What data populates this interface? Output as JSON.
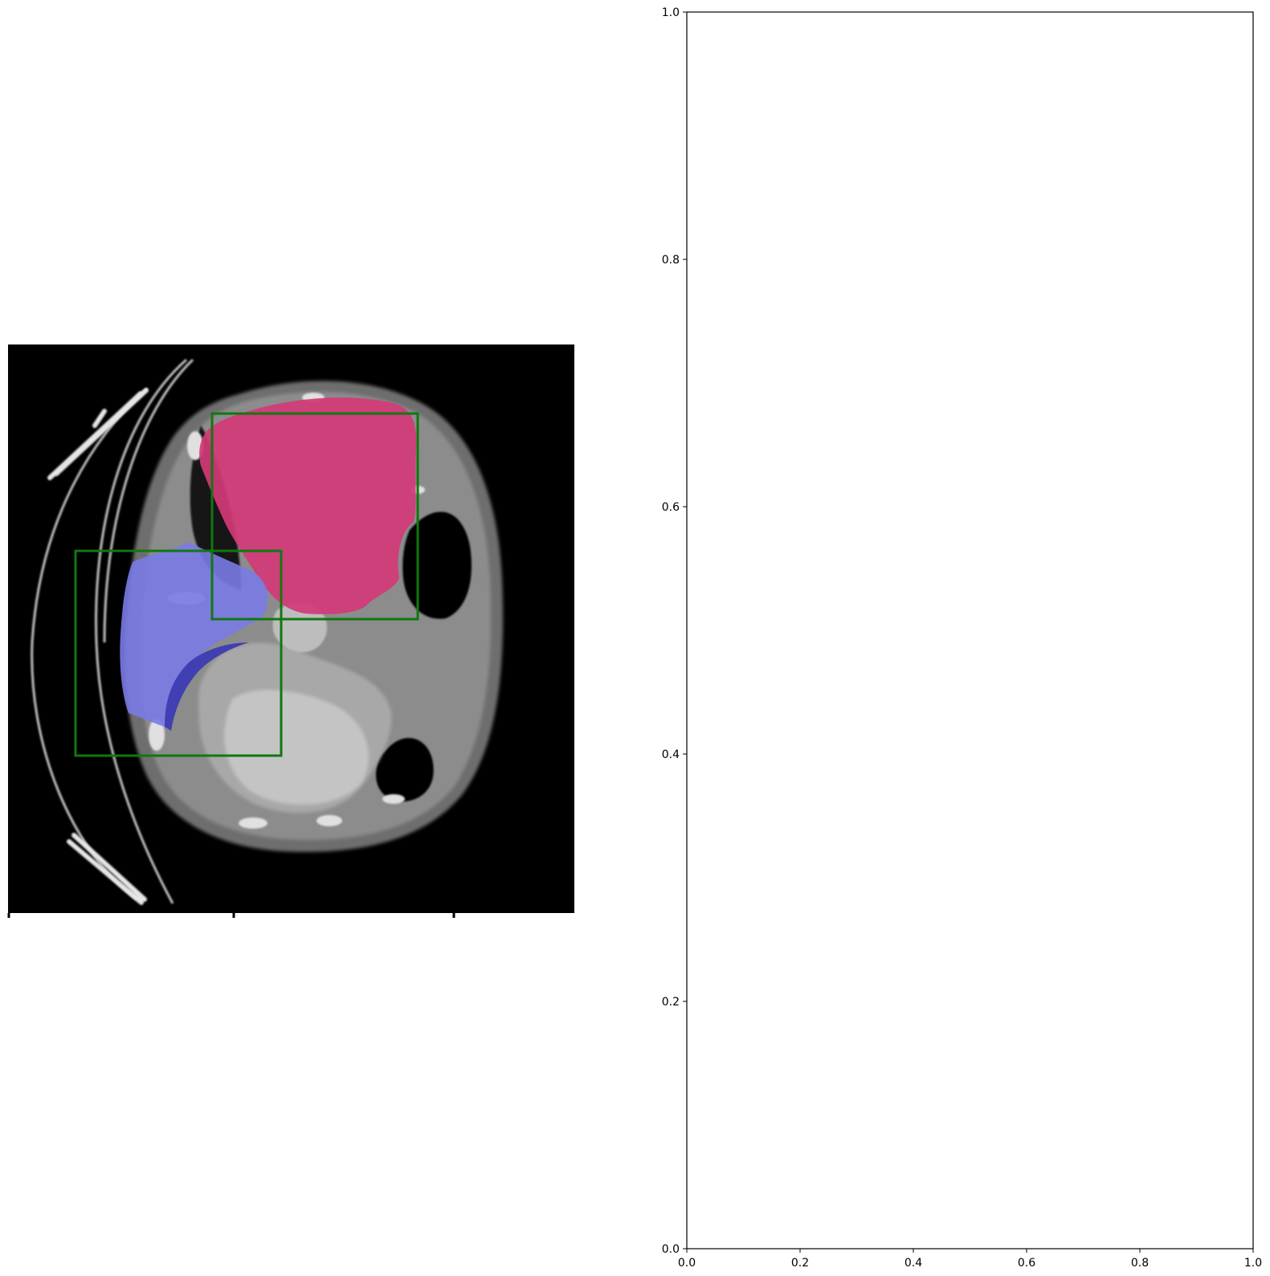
{
  "figure": {
    "left_panel": {
      "kind": "ct-scan-with-segmentation",
      "image_colors": {
        "background": "#000000",
        "body_tissue": "#8c8c8c",
        "air": "#000000",
        "bone": "#d8d8d8"
      },
      "overlays": [
        {
          "name": "pink-mask",
          "color": "#d33a78"
        },
        {
          "name": "blue-mask",
          "color": "#7a7ae6"
        }
      ],
      "bbox_color": "#117711"
    },
    "right_panel": {
      "kind": "empty-axes",
      "xlim": [
        0.0,
        1.0
      ],
      "ylim": [
        0.0,
        1.0
      ],
      "x_ticks": [
        "0.0",
        "0.2",
        "0.4",
        "0.6",
        "0.8",
        "1.0"
      ],
      "y_ticks": [
        "0.0",
        "0.2",
        "0.4",
        "0.6",
        "0.8",
        "1.0"
      ]
    }
  }
}
